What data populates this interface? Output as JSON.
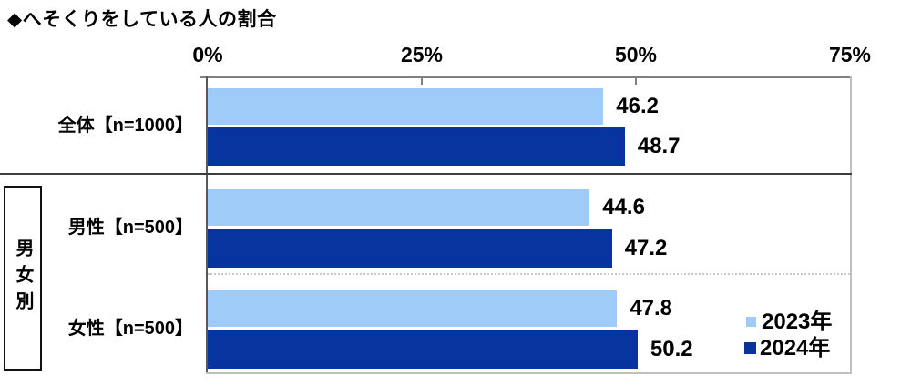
{
  "title": "◆へそくりをしている人の割合",
  "side_label": "男女別",
  "axis": {
    "tick_labels": [
      "0%",
      "25%",
      "50%",
      "75%"
    ]
  },
  "legend": {
    "items": [
      {
        "label": "2023年",
        "color": "#9ECBF8"
      },
      {
        "label": "2024年",
        "color": "#0834A0"
      }
    ]
  },
  "chart_data": {
    "type": "bar",
    "orientation": "horizontal",
    "title": "へそくりをしている人の割合",
    "categories": [
      "全体【n=1000】",
      "男性【n=500】",
      "女性【n=500】"
    ],
    "series": [
      {
        "name": "2023年",
        "color": "#9ECBF8",
        "values": [
          46.2,
          44.6,
          47.8
        ]
      },
      {
        "name": "2024年",
        "color": "#0834A0",
        "values": [
          48.7,
          47.2,
          50.2
        ]
      }
    ],
    "xlim": [
      0,
      75
    ],
    "x_ticks": [
      0,
      25,
      50,
      75
    ],
    "value_labels": true,
    "grid": "off",
    "legend_position": "inside-bottom-right"
  }
}
